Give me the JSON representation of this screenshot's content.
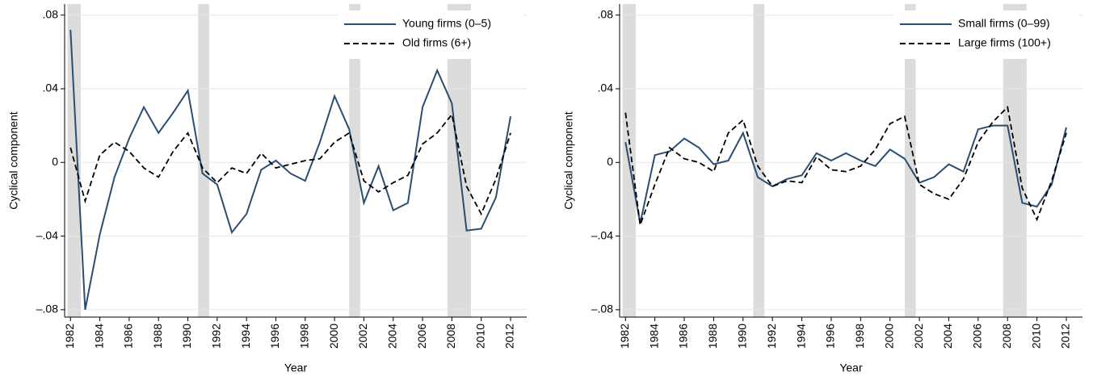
{
  "chart_data": [
    {
      "type": "line",
      "xlabel": "Year",
      "ylabel": "Cyclical component",
      "x": [
        1982,
        1983,
        1984,
        1985,
        1986,
        1987,
        1988,
        1989,
        1990,
        1991,
        1992,
        1993,
        1994,
        1995,
        1996,
        1997,
        1998,
        1999,
        2000,
        2001,
        2002,
        2003,
        2004,
        2005,
        2006,
        2007,
        2008,
        2009,
        2010,
        2011,
        2012
      ],
      "series": [
        {
          "name": "Young firms (0–5)",
          "color": "#2a4e72",
          "dash": false,
          "values": [
            0.072,
            -0.08,
            -0.039,
            -0.008,
            0.013,
            0.03,
            0.016,
            0.027,
            0.039,
            -0.006,
            -0.012,
            -0.038,
            -0.028,
            -0.004,
            0.001,
            -0.006,
            -0.01,
            0.011,
            0.036,
            0.018,
            -0.022,
            -0.002,
            -0.026,
            -0.022,
            0.03,
            0.05,
            0.032,
            -0.037,
            -0.036,
            -0.019,
            0.025
          ]
        },
        {
          "name": "Old firms (6+)",
          "color": "#000000",
          "dash": true,
          "values": [
            0.008,
            -0.021,
            0.004,
            0.011,
            0.006,
            -0.003,
            -0.008,
            0.006,
            0.016,
            -0.003,
            -0.011,
            -0.003,
            -0.006,
            0.005,
            -0.003,
            -0.001,
            0.001,
            0.002,
            0.011,
            0.016,
            -0.01,
            -0.016,
            -0.011,
            -0.007,
            0.01,
            0.016,
            0.026,
            -0.013,
            -0.028,
            -0.009,
            0.016
          ]
        }
      ],
      "recessions": [
        [
          1981.8,
          1982.7
        ],
        [
          1990.7,
          1991.45
        ],
        [
          2001.0,
          2001.75
        ],
        [
          2007.7,
          2009.3
        ]
      ],
      "xlim": [
        1981.6,
        2013.1
      ],
      "ylim": [
        -0.084,
        0.086
      ],
      "xticks": [
        1982,
        1984,
        1986,
        1988,
        1990,
        1992,
        1994,
        1996,
        1998,
        2000,
        2002,
        2004,
        2006,
        2008,
        2010,
        2012
      ],
      "yticks": [
        {
          "value": 0.08,
          "label": ".08"
        },
        {
          "value": 0.04,
          "label": ".04"
        },
        0,
        {
          "value": -0.04,
          "label": "–.04"
        },
        {
          "value": -0.08,
          "label": "–.08"
        }
      ],
      "grid": true,
      "legend": "top-right"
    },
    {
      "type": "line",
      "xlabel": "Year",
      "ylabel": "Cyclical component",
      "x": [
        1982,
        1983,
        1984,
        1985,
        1986,
        1987,
        1988,
        1989,
        1990,
        1991,
        1992,
        1993,
        1994,
        1995,
        1996,
        1997,
        1998,
        1999,
        2000,
        2001,
        2002,
        2003,
        2004,
        2005,
        2006,
        2007,
        2008,
        2009,
        2010,
        2011,
        2012
      ],
      "series": [
        {
          "name": "Small firms (0–99)",
          "color": "#2a4e72",
          "dash": false,
          "values": [
            0.011,
            -0.033,
            0.004,
            0.006,
            0.013,
            0.008,
            -0.001,
            0.001,
            0.016,
            -0.008,
            -0.013,
            -0.009,
            -0.007,
            0.005,
            0.001,
            0.005,
            0.001,
            -0.002,
            0.007,
            0.002,
            -0.011,
            -0.008,
            -0.001,
            -0.005,
            0.018,
            0.02,
            0.02,
            -0.022,
            -0.024,
            -0.012,
            0.019
          ]
        },
        {
          "name": "Large firms (100+)",
          "color": "#000000",
          "dash": true,
          "values": [
            0.027,
            -0.034,
            -0.012,
            0.008,
            0.002,
            0,
            -0.005,
            0.016,
            0.023,
            -0.002,
            -0.013,
            -0.01,
            -0.011,
            0.003,
            -0.004,
            -0.005,
            -0.002,
            0.007,
            0.021,
            0.025,
            -0.012,
            -0.017,
            -0.02,
            -0.009,
            0.011,
            0.022,
            0.03,
            -0.014,
            -0.031,
            -0.01,
            0.016
          ]
        }
      ],
      "recessions": [
        [
          1981.8,
          1982.7
        ],
        [
          1990.7,
          1991.45
        ],
        [
          2001.0,
          2001.75
        ],
        [
          2007.7,
          2009.3
        ]
      ],
      "xlim": [
        1981.6,
        2013.1
      ],
      "ylim": [
        -0.084,
        0.086
      ],
      "xticks": [
        1982,
        1984,
        1986,
        1988,
        1990,
        1992,
        1994,
        1996,
        1998,
        2000,
        2002,
        2004,
        2006,
        2008,
        2010,
        2012
      ],
      "yticks": [
        {
          "value": 0.08,
          "label": ".08"
        },
        {
          "value": 0.04,
          "label": ".04"
        },
        0,
        {
          "value": -0.04,
          "label": "–.04"
        },
        {
          "value": -0.08,
          "label": "–.08"
        }
      ],
      "grid": true,
      "legend": "top-right"
    }
  ]
}
